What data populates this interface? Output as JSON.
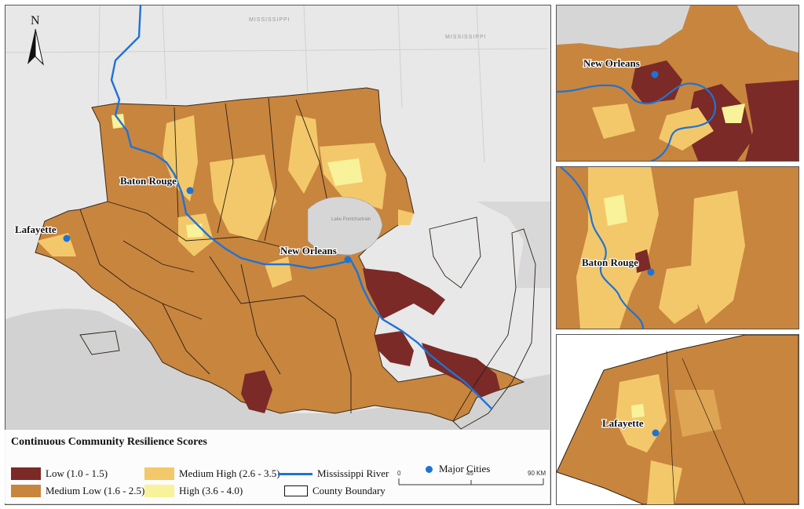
{
  "map": {
    "north_label": "N",
    "state_labels": [
      "MISSISSIPPI",
      "MISSISSIPPI"
    ],
    "lake_label": "Lake Pontchartrain",
    "cities": {
      "baton_rouge": "Baton Rouge",
      "lafayette": "Lafayette",
      "new_orleans": "New Orleans"
    }
  },
  "insets": {
    "new_orleans": "New Orleans",
    "baton_rouge": "Baton Rouge",
    "lafayette": "Lafayette"
  },
  "legend": {
    "title": "Continuous Community Resilience Scores",
    "low": "Low (1.0 - 1.5)",
    "medium_low": "Medium Low (1.6 - 2.5)",
    "medium_high": "Medium High (2.6 - 3.5)",
    "high": "High (3.6 - 4.0)",
    "river": "Mississippi River",
    "county": "County Boundary",
    "cities": "Major Cities",
    "colors": {
      "low": "#7b2a27",
      "medium_low": "#c8853e",
      "medium_high": "#f3c86a",
      "high": "#f8f29a",
      "river": "#1e73d6",
      "city": "#1e73d6",
      "water": "#d6d6d6",
      "land_bg": "#e8e8e8"
    }
  },
  "scale": {
    "t0": "0",
    "t1": "45",
    "t2": "90 KM"
  }
}
